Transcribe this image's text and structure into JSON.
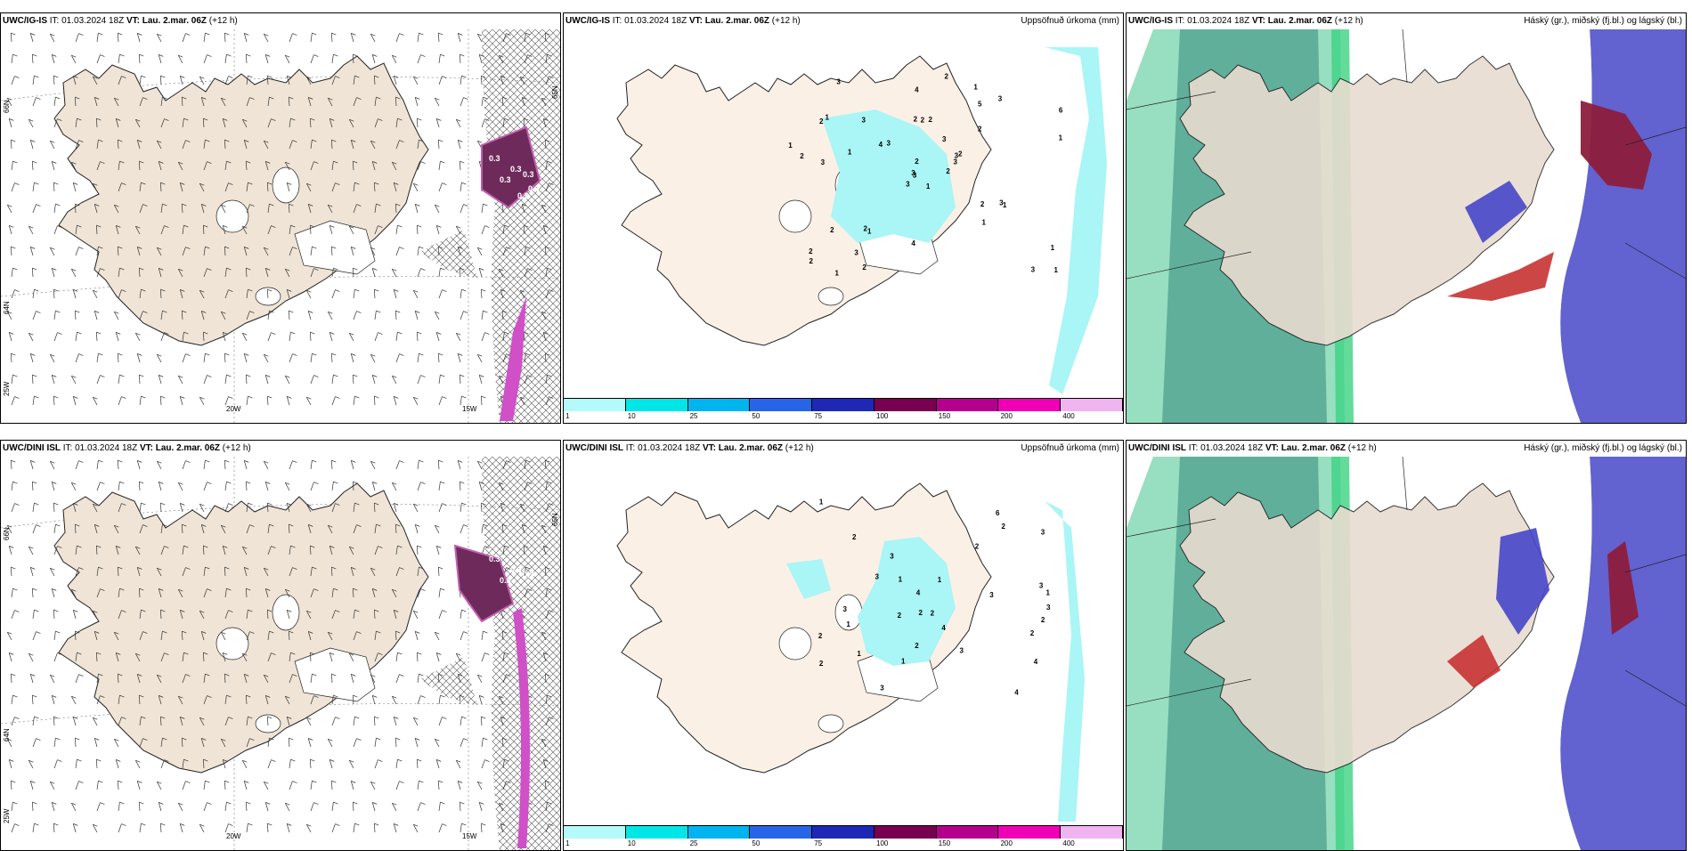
{
  "panels": [
    {
      "model": "UWC/IG-IS",
      "it_label": "IT:",
      "it_value": "01.03.2024 18Z",
      "vt_label": "VT:",
      "vt_value": "Lau. 2.mar. 06Z",
      "lead": "(+12 h)",
      "right_title": "",
      "x_ticks": [
        "20W",
        "15W"
      ],
      "y_ticks": [
        "66N",
        "65N",
        "64N",
        "25W"
      ],
      "contour_values": [
        "0.3",
        "0.3",
        "0.3",
        "0.3",
        "0.3",
        "0.3"
      ]
    },
    {
      "model": "UWC/IG-IS",
      "it_label": "IT:",
      "it_value": "01.03.2024 18Z",
      "vt_label": "VT:",
      "vt_value": "Lau. 2.mar. 06Z",
      "lead": "(+12 h)",
      "right_title": "Uppsöfnuð úrkoma (mm)",
      "precip_labels": [
        "1",
        "2",
        "3",
        "2",
        "3",
        "1",
        "1",
        "2",
        "5",
        "2",
        "3",
        "1",
        "3",
        "6",
        "3",
        "2",
        "1",
        "2",
        "3",
        "2",
        "3",
        "2",
        "3",
        "2",
        "2",
        "1",
        "1",
        "4",
        "2",
        "2",
        "1",
        "3",
        "4",
        "2",
        "3",
        "3",
        "2",
        "3",
        "1",
        "3",
        "2",
        "4",
        "1",
        "1",
        "2",
        "1",
        "3"
      ]
    },
    {
      "model": "UWC/IG-IS",
      "it_label": "IT:",
      "it_value": "01.03.2024 18Z",
      "vt_label": "VT:",
      "vt_value": "Lau. 2.mar. 06Z",
      "lead": "(+12 h)",
      "right_title": "Háský (gr.), miðský (fj.bl.) og lágský (bl.)"
    },
    {
      "model": "UWC/DINI ISL",
      "it_label": "IT:",
      "it_value": "01.03.2024 18Z",
      "vt_label": "VT:",
      "vt_value": "Lau. 2.mar. 06Z",
      "lead": "(+12 h)",
      "right_title": "",
      "x_ticks": [
        "20W",
        "15W"
      ],
      "y_ticks": [
        "66N",
        "65N",
        "64N",
        "25W"
      ],
      "contour_values": [
        "0.3",
        "0.3",
        "0.3",
        "0.3"
      ]
    },
    {
      "model": "UWC/DINI ISL",
      "it_label": "IT:",
      "it_value": "01.03.2024 18Z",
      "vt_label": "VT:",
      "vt_value": "Lau. 2.mar. 06Z",
      "lead": "(+12 h)",
      "right_title": "Uppsöfnuð úrkoma (mm)",
      "precip_labels": [
        "1",
        "1",
        "2",
        "3",
        "1",
        "4",
        "2",
        "3",
        "1",
        "6",
        "2",
        "2",
        "2",
        "2",
        "1",
        "3",
        "2",
        "4",
        "2",
        "3",
        "4",
        "1",
        "2",
        "4",
        "2",
        "2",
        "1",
        "3",
        "3",
        "3",
        "3",
        "3"
      ]
    },
    {
      "model": "UWC/DINI ISL",
      "it_label": "IT:",
      "it_value": "01.03.2024 18Z",
      "vt_label": "VT:",
      "vt_value": "Lau. 2.mar. 06Z",
      "lead": "(+12 h)",
      "right_title": "Háský (gr.), miðský (fj.bl.) og lágský (bl.)"
    }
  ],
  "precip_legend": {
    "labels": [
      "1",
      "10",
      "25",
      "50",
      "75",
      "100",
      "150",
      "200",
      "400"
    ],
    "colors": [
      "#b4fafa",
      "#00e6e6",
      "#00b4f0",
      "#2864e6",
      "#1e28b4",
      "#780050",
      "#b4008c",
      "#f000b4",
      "#f0b4f0"
    ]
  },
  "colors": {
    "land": "#efe4d6",
    "land_precip": "#fbf0e6",
    "precip_light": "#aaf5f5",
    "cloud_high": "#1eb486",
    "cloud_mid": "#4646c8",
    "cloud_low_red": "#c83232",
    "purple": "#6e2a5a",
    "magenta": "#d050c8"
  }
}
